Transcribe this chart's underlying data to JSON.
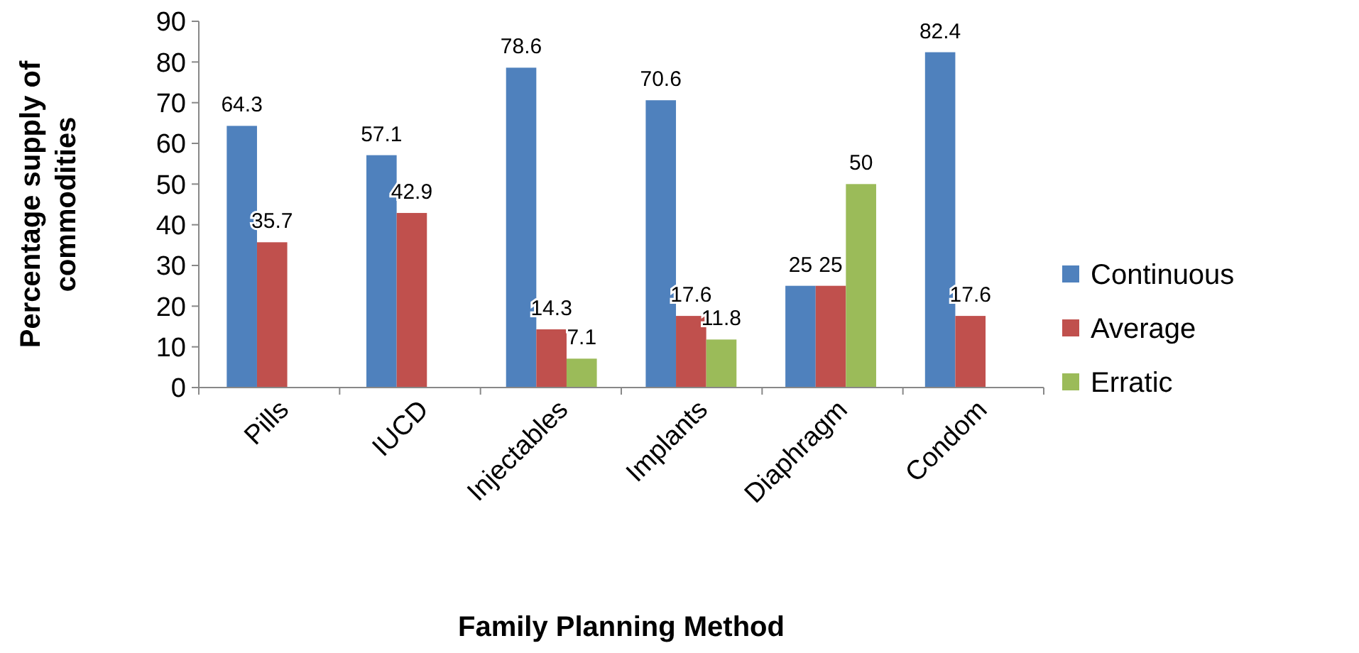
{
  "chart_data": {
    "type": "bar",
    "xlabel": "Family Planning Method",
    "ylabel": "Percentage supply of commodities",
    "categories": [
      "Pills",
      "IUCD",
      "Injectables",
      "Implants",
      "Diaphragm",
      "Condom"
    ],
    "series": [
      {
        "name": "Continuous",
        "color": "#4f81bd",
        "values": [
          64.3,
          57.1,
          78.6,
          70.6,
          25,
          82.4
        ]
      },
      {
        "name": "Average",
        "color": "#c0504d",
        "values": [
          35.7,
          42.9,
          14.3,
          17.6,
          25,
          17.6
        ]
      },
      {
        "name": "Erratic",
        "color": "#9bbb59",
        "values": [
          null,
          null,
          7.1,
          11.8,
          50,
          null
        ]
      }
    ],
    "ylim": [
      0,
      90
    ],
    "yticks": [
      0,
      10,
      20,
      30,
      40,
      50,
      60,
      70,
      80,
      90
    ],
    "grid": false,
    "legend": "right",
    "data_labels": true
  }
}
